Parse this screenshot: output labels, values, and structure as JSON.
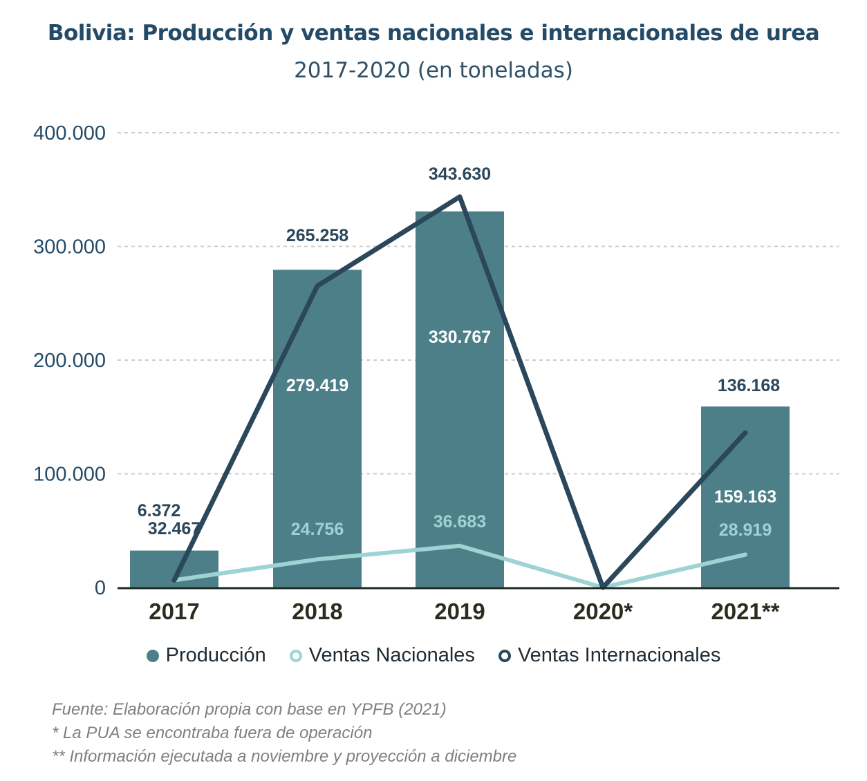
{
  "title": "Bolivia: Producción y ventas nacionales e internacionales de urea",
  "subtitle": "2017-2020 (en toneladas)",
  "colors": {
    "produccion": "#4d7f88",
    "ventas_nacionales": "#9dd3d4",
    "ventas_internacionales": "#2b475b",
    "grid": "#cccccc",
    "axis": "#1f2a20"
  },
  "chart_data": {
    "type": "bar",
    "categories": [
      "2017",
      "2018",
      "2019",
      "2020*",
      "2021**"
    ],
    "yticks": [
      "0",
      "100.000",
      "200.000",
      "300.000",
      "400.000"
    ],
    "ylim": [
      0,
      400000
    ],
    "grid": true,
    "legend_position": "bottom",
    "series": [
      {
        "name": "Producción",
        "kind": "bar",
        "values": [
          32467,
          279419,
          330767,
          0,
          159163
        ],
        "labels": [
          "32.467",
          "279.419",
          "330.767",
          "",
          "159.163"
        ]
      },
      {
        "name": "Ventas Nacionales",
        "kind": "line",
        "values": [
          6372,
          24756,
          36683,
          0,
          28919
        ],
        "labels": [
          "6.372",
          "24.756",
          "36.683",
          "",
          "28.919"
        ]
      },
      {
        "name": "Ventas Internacionales",
        "kind": "line",
        "values": [
          6372,
          265258,
          343630,
          0,
          136168
        ],
        "labels": [
          "",
          "265.258",
          "343.630",
          "",
          "136.168"
        ]
      }
    ]
  },
  "legend": {
    "items": [
      {
        "label": "Producción"
      },
      {
        "label": "Ventas Nacionales"
      },
      {
        "label": "Ventas Internacionales"
      }
    ]
  },
  "notes": {
    "source": "Fuente: Elaboración propia con base en YPFB (2021)",
    "note1": "* La PUA se encontraba fuera de operación",
    "note2": "** Información ejecutada a noviembre y proyección a diciembre"
  }
}
